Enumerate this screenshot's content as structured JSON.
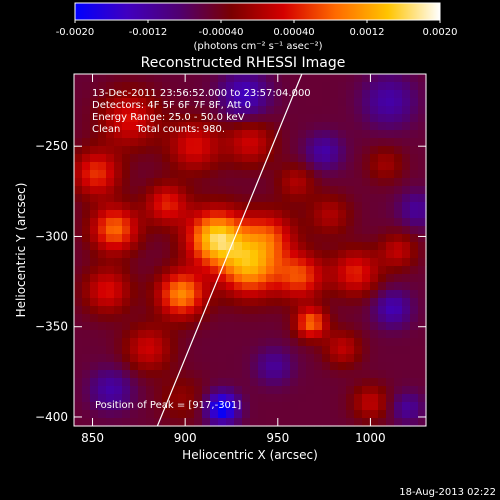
{
  "chart_data": {
    "type": "heatmap",
    "title": "Reconstructed RHESSI Image",
    "xlabel": "Heliocentric X (arcsec)",
    "ylabel": "Heliocentric Y (arcsec)",
    "xlim": [
      840,
      1030
    ],
    "ylim": [
      -405,
      -210
    ],
    "x_ticks": [
      850,
      900,
      950,
      1000
    ],
    "y_ticks": [
      -250,
      -300,
      -350,
      -400
    ],
    "colorbar": {
      "range": [
        -0.002,
        0.002
      ],
      "ticks": [
        -0.002,
        -0.0012,
        -0.0004,
        0.0004,
        0.0012,
        0.002
      ],
      "tick_labels": [
        "-0.0020",
        "-0.0012",
        "-0.00040",
        "0.00040",
        "0.0012",
        "0.0020"
      ],
      "unit_label": "(photons cm⁻² s⁻¹ asec⁻²)",
      "colors": [
        "#0000ff",
        "#4000c0",
        "#500070",
        "#7a0000",
        "#d40000",
        "#ff6a00",
        "#ffc400",
        "#ffffff"
      ]
    },
    "annotations": {
      "time_range": "13-Dec-2011 23:56:52.000 to 23:57:04.000",
      "detectors": "Detectors: 4F 5F 6F 7F 8F, Att 0",
      "energy_range": "Energy Range: 25.0 - 50.0 keV",
      "method": "Clean     Total counts: 980.",
      "peak": "Position of Peak = [917,-301]"
    },
    "limb_line": {
      "x": [
        885,
        963
      ],
      "y": [
        -405,
        -210
      ]
    },
    "sources": [
      {
        "x": 917,
        "y": -301,
        "amp": 0.0021,
        "sigma": 11
      },
      {
        "x": 935,
        "y": -318,
        "amp": 0.0016,
        "sigma": 11
      },
      {
        "x": 945,
        "y": -300,
        "amp": 0.0011,
        "sigma": 10
      },
      {
        "x": 898,
        "y": -332,
        "amp": 0.0016,
        "sigma": 9
      },
      {
        "x": 862,
        "y": -296,
        "amp": 0.0014,
        "sigma": 9
      },
      {
        "x": 852,
        "y": -265,
        "amp": 0.0011,
        "sigma": 9
      },
      {
        "x": 870,
        "y": -235,
        "amp": 0.0009,
        "sigma": 11
      },
      {
        "x": 905,
        "y": -250,
        "amp": 0.0009,
        "sigma": 10
      },
      {
        "x": 935,
        "y": -248,
        "amp": 0.0008,
        "sigma": 9
      },
      {
        "x": 890,
        "y": -282,
        "amp": 0.001,
        "sigma": 8
      },
      {
        "x": 858,
        "y": -330,
        "amp": 0.0009,
        "sigma": 9
      },
      {
        "x": 880,
        "y": -362,
        "amp": 0.0008,
        "sigma": 9
      },
      {
        "x": 962,
        "y": -322,
        "amp": 0.0012,
        "sigma": 9
      },
      {
        "x": 992,
        "y": -320,
        "amp": 0.001,
        "sigma": 9
      },
      {
        "x": 1015,
        "y": -308,
        "amp": 0.0007,
        "sigma": 7
      },
      {
        "x": 968,
        "y": -348,
        "amp": 0.0014,
        "sigma": 6
      },
      {
        "x": 985,
        "y": -362,
        "amp": 0.0007,
        "sigma": 7
      },
      {
        "x": 978,
        "y": -288,
        "amp": 0.0006,
        "sigma": 8
      },
      {
        "x": 960,
        "y": -270,
        "amp": 0.0006,
        "sigma": 7
      },
      {
        "x": 1000,
        "y": -392,
        "amp": 0.0007,
        "sigma": 7
      },
      {
        "x": 1008,
        "y": -260,
        "amp": 0.0005,
        "sigma": 7
      },
      {
        "x": 898,
        "y": -390,
        "amp": 0.0004,
        "sigma": 9
      },
      {
        "x": 920,
        "y": -395,
        "amp": -0.0016,
        "sigma": 6
      },
      {
        "x": 932,
        "y": -222,
        "amp": -0.0009,
        "sigma": 9
      },
      {
        "x": 1010,
        "y": -225,
        "amp": -0.0007,
        "sigma": 10
      },
      {
        "x": 1012,
        "y": -340,
        "amp": -0.0008,
        "sigma": 7
      },
      {
        "x": 975,
        "y": -253,
        "amp": -0.0007,
        "sigma": 7
      },
      {
        "x": 860,
        "y": -385,
        "amp": -0.0007,
        "sigma": 8
      },
      {
        "x": 948,
        "y": -372,
        "amp": -0.0006,
        "sigma": 7
      },
      {
        "x": 1025,
        "y": -285,
        "amp": -0.0006,
        "sigma": 7
      },
      {
        "x": 1020,
        "y": -395,
        "amp": -0.0006,
        "sigma": 6
      }
    ],
    "background": -0.00055
  },
  "footer": {
    "date": "18-Aug-2013 02:22"
  }
}
